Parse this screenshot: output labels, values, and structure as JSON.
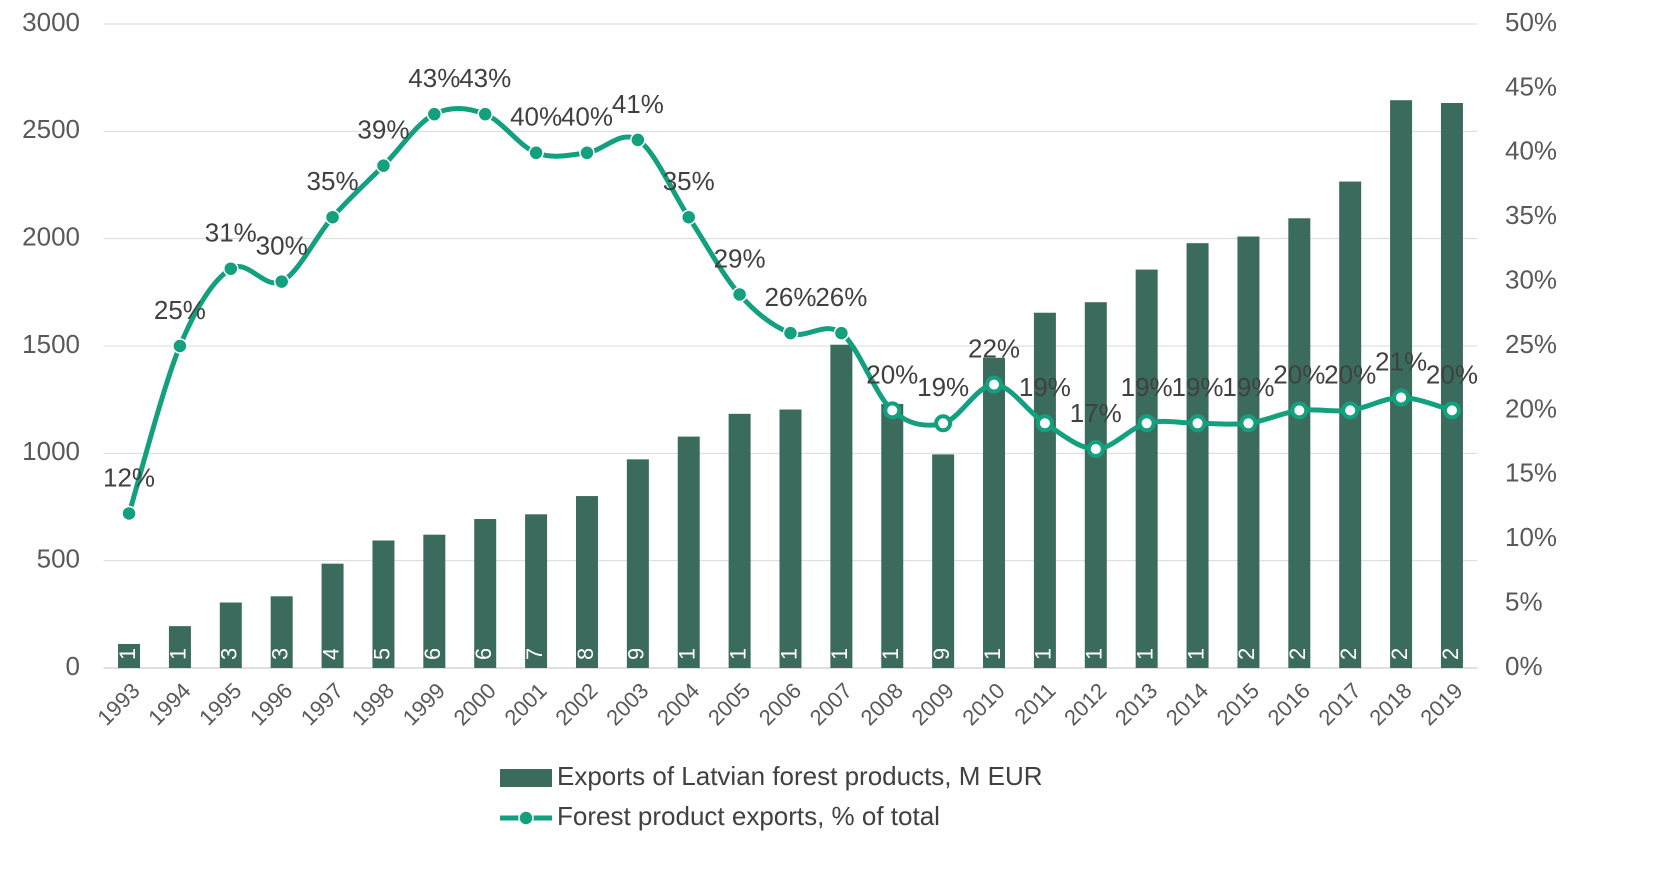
{
  "chart_data": {
    "type": "bar-line",
    "categories": [
      "1993",
      "1994",
      "1995",
      "1996",
      "1997",
      "1998",
      "1999",
      "2000",
      "2001",
      "2002",
      "2003",
      "2004",
      "2005",
      "2006",
      "2007",
      "2008",
      "2009",
      "2010",
      "2011",
      "2012",
      "2013",
      "2014",
      "2015",
      "2016",
      "2017",
      "2018",
      "2019"
    ],
    "series": [
      {
        "name": "Exports of Latvian forest products, M EUR",
        "type": "bar",
        "color": "#3b6b5c",
        "values": [
          112,
          195,
          305,
          334,
          486,
          594,
          621,
          694,
          716,
          801,
          972,
          1078,
          1184,
          1204,
          1506,
          1230,
          995,
          1445,
          1655,
          1704,
          1856,
          1979,
          2010,
          2095,
          2266,
          2645,
          2632
        ]
      },
      {
        "name": "Forest product exports, % of total",
        "type": "line",
        "axis": "y2",
        "color": "#12a07e",
        "values": [
          12,
          25,
          31,
          30,
          35,
          39,
          43,
          43,
          40,
          40,
          41,
          35,
          29,
          26,
          26,
          20,
          19,
          22,
          19,
          17,
          19,
          19,
          19,
          20,
          20,
          21,
          20
        ],
        "value_labels": [
          "12%",
          "25%",
          "31%",
          "30%",
          "35%",
          "39%",
          "43%",
          "43%",
          "40%",
          "40%",
          "41%",
          "35%",
          "29%",
          "26%",
          "26%",
          "20%",
          "19%",
          "22%",
          "19%",
          "17%",
          "19%",
          "19%",
          "19%",
          "20%",
          "20%",
          "21%",
          "20%"
        ]
      }
    ],
    "ylim": [
      0,
      3000
    ],
    "yticks": [
      0,
      500,
      1000,
      1500,
      2000,
      2500,
      3000
    ],
    "y2lim": [
      0,
      50
    ],
    "y2ticks": [
      {
        "value": 0,
        "label": "0%"
      },
      {
        "value": 5,
        "label": "5%"
      },
      {
        "value": 10,
        "label": "10%"
      },
      {
        "value": 15,
        "label": "15%"
      },
      {
        "value": 20,
        "label": "20%"
      },
      {
        "value": 25,
        "label": "25%"
      },
      {
        "value": 30,
        "label": "30%"
      },
      {
        "value": 35,
        "label": "35%"
      },
      {
        "value": 40,
        "label": "40%"
      },
      {
        "value": 45,
        "label": "45%"
      },
      {
        "value": 50,
        "label": "50%"
      }
    ],
    "grid": true,
    "legend": "bottom"
  }
}
